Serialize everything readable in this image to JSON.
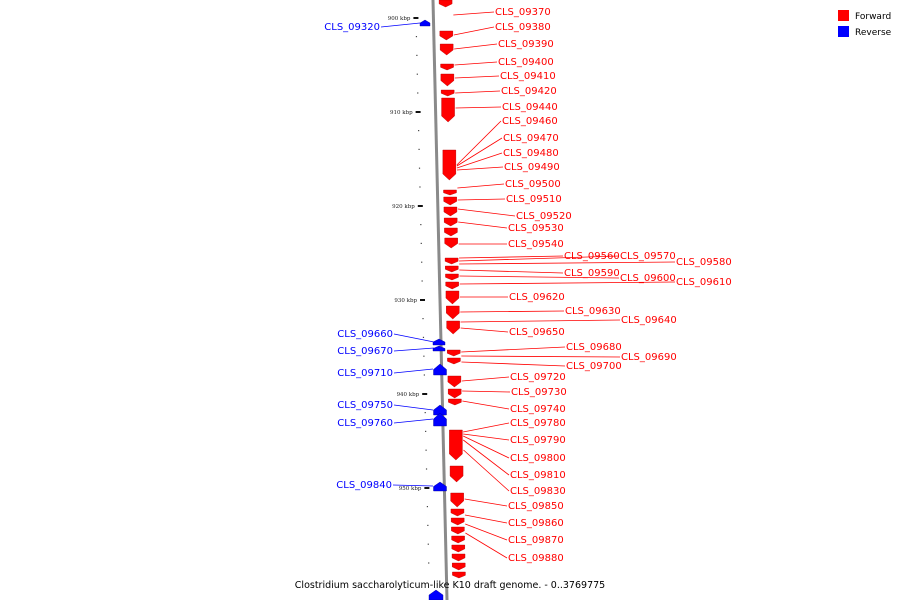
{
  "colors": {
    "forward": "#ff0000",
    "reverse": "#0000ff",
    "backbone": "#8a8a8a"
  },
  "legend": [
    {
      "label": "Forward",
      "color": "#ff0000"
    },
    {
      "label": "Reverse",
      "color": "#0000ff"
    }
  ],
  "caption": "Clostridium saccharolyticum-like K10 draft genome. - 0..3769775",
  "scale": {
    "unit": "kbp",
    "ticks": [
      900,
      910,
      920,
      930,
      940,
      950
    ]
  },
  "genes": {
    "forward": [
      "CLS_09370",
      "CLS_09380",
      "CLS_09390",
      "CLS_09400",
      "CLS_09410",
      "CLS_09420",
      "CLS_09440",
      "CLS_09460",
      "CLS_09470",
      "CLS_09480",
      "CLS_09490",
      "CLS_09500",
      "CLS_09510",
      "CLS_09520",
      "CLS_09530",
      "CLS_09540",
      "CLS_09560",
      "CLS_09570",
      "CLS_09580",
      "CLS_09590",
      "CLS_09600",
      "CLS_09610",
      "CLS_09620",
      "CLS_09630",
      "CLS_09640",
      "CLS_09650",
      "CLS_09680",
      "CLS_09690",
      "CLS_09700",
      "CLS_09720",
      "CLS_09730",
      "CLS_09740",
      "CLS_09780",
      "CLS_09790",
      "CLS_09800",
      "CLS_09810",
      "CLS_09830",
      "CLS_09850",
      "CLS_09860",
      "CLS_09870",
      "CLS_09880"
    ],
    "reverse": [
      "CLS_09320",
      "CLS_09660",
      "CLS_09670",
      "CLS_09710",
      "CLS_09750",
      "CLS_09760",
      "CLS_09840"
    ]
  }
}
